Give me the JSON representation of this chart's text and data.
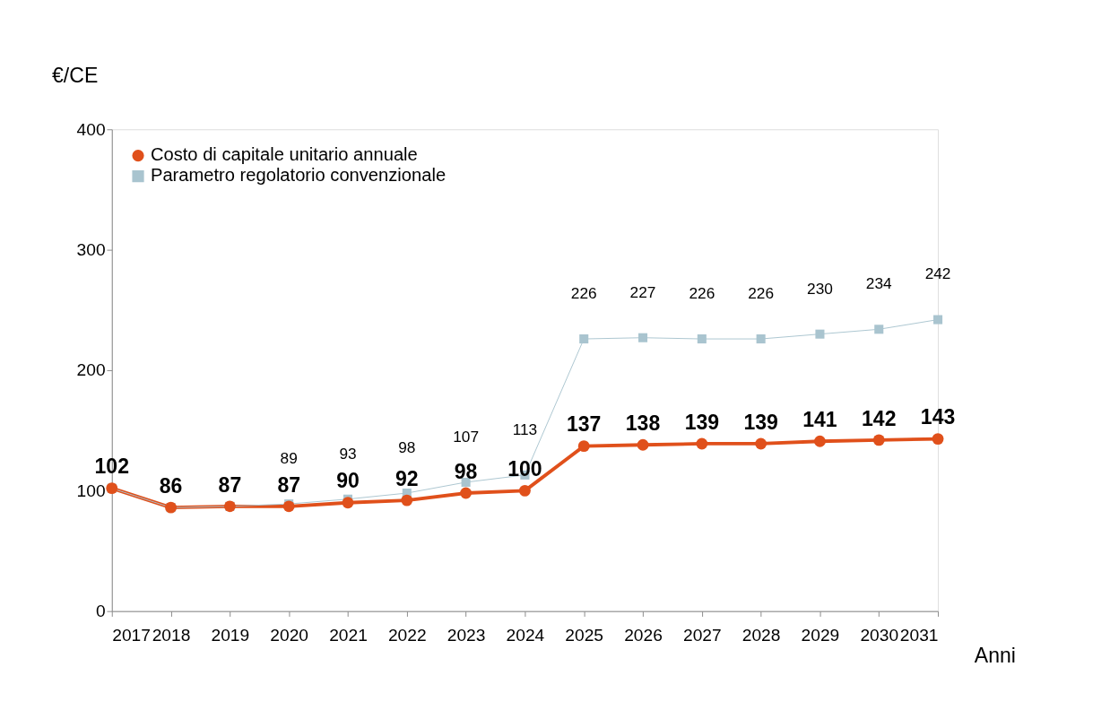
{
  "chart_data": {
    "type": "line",
    "ylabel": "€/CE",
    "xlabel": "Anni",
    "categories": [
      "2017",
      "2018",
      "2019",
      "2020",
      "2021",
      "2022",
      "2023",
      "2024",
      "2025",
      "2026",
      "2027",
      "2028",
      "2029",
      "2030",
      "2031"
    ],
    "series": [
      {
        "name": "Costo di capitale unitario annuale",
        "color": "#e0501b",
        "marker": "circle",
        "values": [
          102,
          86,
          87,
          87,
          90,
          92,
          98,
          100,
          137,
          138,
          139,
          139,
          141,
          142,
          143
        ],
        "value_labels": [
          "102",
          "86",
          "87",
          "87",
          "90",
          "92",
          "98",
          "100",
          "137",
          "138",
          "139",
          "139",
          "141",
          "142",
          "143"
        ]
      },
      {
        "name": "Parametro regolatorio convenzionale",
        "color": "#a9c4cf",
        "marker": "square",
        "values": [
          102,
          86,
          87,
          89,
          93,
          98,
          107,
          113,
          226,
          227,
          226,
          226,
          230,
          234,
          242
        ],
        "value_labels": [
          null,
          null,
          null,
          "89",
          "93",
          "98",
          "107",
          "113",
          "226",
          "227",
          "226",
          "226",
          "230",
          "234",
          "242"
        ]
      }
    ],
    "ylim": [
      0,
      400
    ],
    "yticks": [
      0,
      100,
      200,
      300,
      400
    ],
    "grid": false,
    "legend": "top left"
  }
}
